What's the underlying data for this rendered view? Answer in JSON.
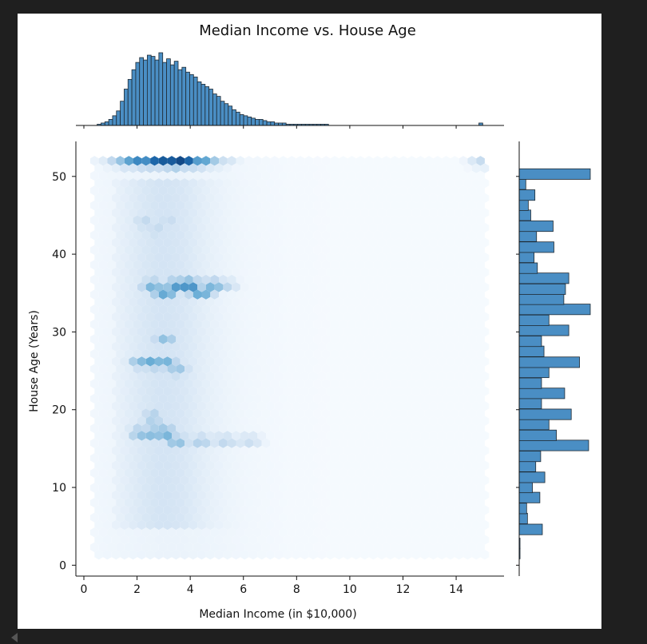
{
  "chart_data": {
    "type": "hexbin",
    "title": "Median Income vs. House Age",
    "xlabel": "Median Income (in $10,000)",
    "ylabel": "House Age (Years)",
    "xlim": [
      -0.3,
      15.8
    ],
    "ylim": [
      -1.4,
      54.5
    ],
    "xticks": [
      "0",
      "2",
      "4",
      "6",
      "8",
      "10",
      "12",
      "14"
    ],
    "yticks": [
      "0",
      "10",
      "20",
      "30",
      "40",
      "50"
    ],
    "colormap": [
      "#f7fbff",
      "#c6dbef",
      "#6baed6",
      "#2171b5",
      "#08306b"
    ],
    "hex_density": [
      {
        "x": 0.8,
        "y": 52,
        "v": 0.1
      },
      {
        "x": 1.25,
        "y": 52,
        "v": 0.3
      },
      {
        "x": 1.7,
        "y": 52,
        "v": 0.55
      },
      {
        "x": 2.15,
        "y": 52,
        "v": 0.7
      },
      {
        "x": 2.6,
        "y": 52,
        "v": 0.8
      },
      {
        "x": 3.05,
        "y": 52,
        "v": 0.85
      },
      {
        "x": 3.5,
        "y": 52,
        "v": 0.95
      },
      {
        "x": 3.95,
        "y": 52,
        "v": 0.8
      },
      {
        "x": 4.4,
        "y": 52,
        "v": 0.6
      },
      {
        "x": 4.85,
        "y": 52,
        "v": 0.35
      },
      {
        "x": 5.3,
        "y": 52,
        "v": 0.2
      },
      {
        "x": 15.0,
        "y": 52,
        "v": 0.25
      },
      {
        "x": 2.3,
        "y": 44,
        "v": 0.3
      },
      {
        "x": 2.75,
        "y": 43,
        "v": 0.3
      },
      {
        "x": 3.2,
        "y": 44,
        "v": 0.28
      },
      {
        "x": 2.6,
        "y": 36,
        "v": 0.5
      },
      {
        "x": 3.05,
        "y": 35,
        "v": 0.55
      },
      {
        "x": 3.5,
        "y": 36,
        "v": 0.62
      },
      {
        "x": 3.95,
        "y": 36,
        "v": 0.7
      },
      {
        "x": 4.4,
        "y": 35,
        "v": 0.55
      },
      {
        "x": 4.85,
        "y": 36,
        "v": 0.5
      },
      {
        "x": 5.3,
        "y": 36,
        "v": 0.3
      },
      {
        "x": 3.05,
        "y": 29,
        "v": 0.4
      },
      {
        "x": 2.15,
        "y": 26,
        "v": 0.45
      },
      {
        "x": 2.6,
        "y": 26,
        "v": 0.55
      },
      {
        "x": 3.05,
        "y": 26,
        "v": 0.5
      },
      {
        "x": 3.5,
        "y": 25,
        "v": 0.4
      },
      {
        "x": 2.6,
        "y": 19,
        "v": 0.4
      },
      {
        "x": 2.15,
        "y": 17,
        "v": 0.45
      },
      {
        "x": 2.6,
        "y": 17,
        "v": 0.5
      },
      {
        "x": 3.05,
        "y": 17,
        "v": 0.55
      },
      {
        "x": 3.5,
        "y": 16,
        "v": 0.45
      },
      {
        "x": 4.4,
        "y": 16,
        "v": 0.35
      },
      {
        "x": 5.3,
        "y": 16,
        "v": 0.3
      },
      {
        "x": 6.2,
        "y": 16,
        "v": 0.25
      }
    ],
    "marginal_x": {
      "bin_edges_start": 0.5,
      "bin_width": 0.145,
      "counts": [
        1,
        2,
        3,
        5,
        8,
        12,
        20,
        30,
        38,
        46,
        52,
        56,
        54,
        58,
        57,
        54,
        60,
        52,
        55,
        50,
        53,
        46,
        48,
        44,
        42,
        40,
        36,
        34,
        32,
        30,
        26,
        24,
        20,
        18,
        16,
        13,
        11,
        9,
        8,
        7,
        6,
        5,
        5,
        4,
        3,
        3,
        2,
        2,
        2,
        1,
        1,
        1,
        1,
        1,
        1,
        1,
        1,
        1,
        1,
        1,
        0,
        0,
        0,
        0,
        0,
        0,
        0,
        0,
        0,
        0,
        0,
        0,
        0,
        0,
        0,
        0,
        0,
        0,
        0,
        0,
        0,
        0,
        0,
        0,
        0,
        0,
        0,
        0,
        0,
        0,
        0,
        0,
        0,
        0,
        0,
        0,
        0,
        0,
        0,
        2
      ]
    },
    "marginal_y": {
      "bins": [
        {
          "y": 1.5,
          "c": 1
        },
        {
          "y": 2.8,
          "c": 1
        },
        {
          "y": 4.6,
          "c": 28
        },
        {
          "y": 6.0,
          "c": 10
        },
        {
          "y": 7.3,
          "c": 9
        },
        {
          "y": 8.7,
          "c": 25
        },
        {
          "y": 10.0,
          "c": 16
        },
        {
          "y": 11.3,
          "c": 31
        },
        {
          "y": 12.7,
          "c": 20
        },
        {
          "y": 14.0,
          "c": 26
        },
        {
          "y": 15.4,
          "c": 84
        },
        {
          "y": 16.7,
          "c": 45
        },
        {
          "y": 18.1,
          "c": 36
        },
        {
          "y": 19.4,
          "c": 63
        },
        {
          "y": 20.8,
          "c": 27
        },
        {
          "y": 22.1,
          "c": 55
        },
        {
          "y": 23.4,
          "c": 27
        },
        {
          "y": 24.8,
          "c": 36
        },
        {
          "y": 26.1,
          "c": 73
        },
        {
          "y": 27.5,
          "c": 30
        },
        {
          "y": 28.8,
          "c": 27
        },
        {
          "y": 30.2,
          "c": 60
        },
        {
          "y": 31.5,
          "c": 36
        },
        {
          "y": 32.9,
          "c": 86
        },
        {
          "y": 34.2,
          "c": 54
        },
        {
          "y": 35.5,
          "c": 56
        },
        {
          "y": 36.9,
          "c": 60
        },
        {
          "y": 38.2,
          "c": 22
        },
        {
          "y": 39.6,
          "c": 18
        },
        {
          "y": 40.9,
          "c": 42
        },
        {
          "y": 42.3,
          "c": 21
        },
        {
          "y": 43.6,
          "c": 41
        },
        {
          "y": 45.0,
          "c": 14
        },
        {
          "y": 46.3,
          "c": 11
        },
        {
          "y": 47.6,
          "c": 19
        },
        {
          "y": 49.0,
          "c": 8
        },
        {
          "y": 50.3,
          "c": 86
        }
      ]
    }
  }
}
